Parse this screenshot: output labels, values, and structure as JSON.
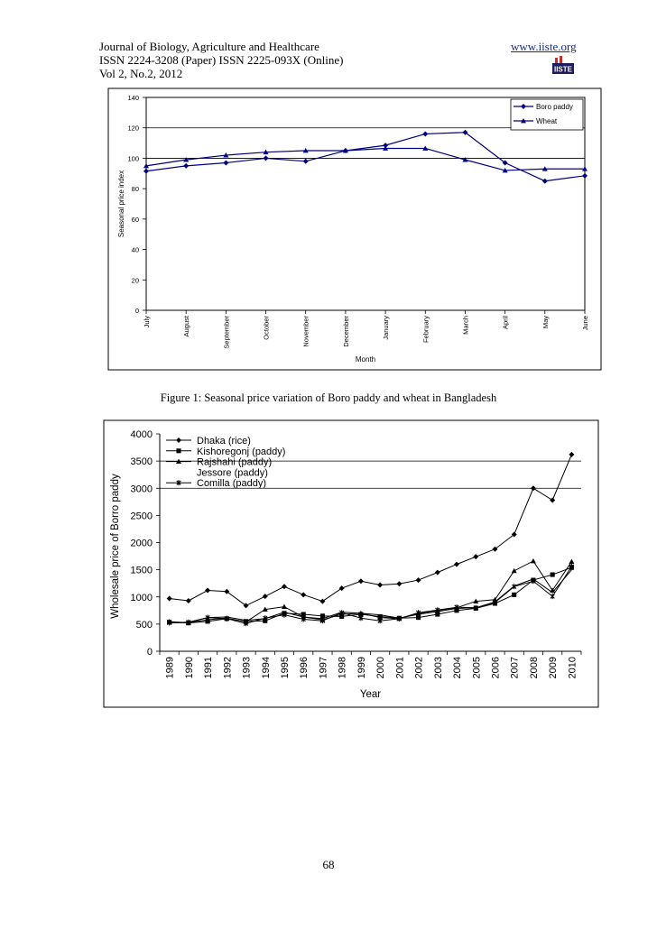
{
  "header": {
    "journal": "Journal of Biology, Agriculture and Healthcare",
    "issn": "ISSN 2224-3208 (Paper) ISSN 2225-093X (Online)",
    "volume": "Vol 2, No.2, 2012",
    "website": "www.iiste.org",
    "logo_text": "IISTE"
  },
  "figure1_caption": "Figure 1: Seasonal price variation of Boro paddy and wheat in Bangladesh",
  "page_number": "68",
  "chart_data": [
    {
      "type": "line",
      "title": "",
      "xlabel": "Month",
      "ylabel": "Seasonal price index",
      "categories": [
        "July",
        "August",
        "September",
        "October",
        "November",
        "December",
        "January",
        "February",
        "March",
        "April",
        "May",
        "June"
      ],
      "ylim": [
        0,
        140
      ],
      "yticks": [
        0,
        20,
        40,
        60,
        80,
        100,
        120,
        140
      ],
      "grid": "horizontal gridlines at 100 and 120",
      "legend": "top-right",
      "series": [
        {
          "name": "Boro paddy",
          "marker": "diamond",
          "values": [
            91.5,
            95,
            97,
            100,
            98,
            105,
            108.5,
            116,
            117,
            97,
            85,
            88.5
          ]
        },
        {
          "name": "Wheat",
          "marker": "triangle",
          "values": [
            95,
            99,
            102,
            104,
            105,
            105,
            106.5,
            106.5,
            99,
            92,
            93,
            93
          ]
        }
      ],
      "colors": {
        "line": "#000080",
        "frame": "#000000"
      }
    },
    {
      "type": "line",
      "title": "",
      "xlabel": "Year",
      "ylabel": "Wholesale price of Borro paddy",
      "categories": [
        "1989",
        "1990",
        "1991",
        "1992",
        "1993",
        "1994",
        "1995",
        "1996",
        "1997",
        "1998",
        "1999",
        "2000",
        "2001",
        "2002",
        "2003",
        "2004",
        "2005",
        "2006",
        "2007",
        "2008",
        "2009",
        "2010"
      ],
      "ylim": [
        0,
        4000
      ],
      "yticks": [
        0,
        500,
        1000,
        1500,
        2000,
        2500,
        3000,
        3500,
        4000
      ],
      "grid": "horizontal gridlines at 3000 and 3500",
      "legend": "top-left",
      "series": [
        {
          "name": "Dhaka  (rice)",
          "marker": "diamond",
          "values": [
            970,
            930,
            1120,
            1100,
            840,
            1010,
            1190,
            1040,
            920,
            1160,
            1290,
            1220,
            1240,
            1310,
            1450,
            1600,
            1740,
            1880,
            2150,
            3000,
            2780,
            3620
          ]
        },
        {
          "name": "Kishoregonj (paddy)",
          "marker": "square",
          "values": [
            535,
            520,
            550,
            600,
            550,
            560,
            700,
            680,
            650,
            640,
            680,
            640,
            610,
            620,
            680,
            750,
            790,
            880,
            1040,
            1310,
            1410,
            1540
          ]
        },
        {
          "name": "Rajshahi (paddy)",
          "marker": "triangle",
          "values": [
            545,
            525,
            580,
            610,
            540,
            770,
            820,
            630,
            580,
            680,
            700,
            620,
            600,
            700,
            750,
            800,
            920,
            950,
            1480,
            1660,
            1120,
            1650
          ]
        },
        {
          "name": "Jessore  (paddy)",
          "marker": "none",
          "values": [
            520,
            530,
            620,
            630,
            570,
            600,
            720,
            630,
            600,
            720,
            700,
            670,
            610,
            680,
            730,
            790,
            800,
            910,
            1200,
            1330,
            1080,
            1500
          ]
        },
        {
          "name": "Comilla (paddy)",
          "marker": "star",
          "values": [
            525,
            535,
            620,
            600,
            510,
            610,
            670,
            590,
            560,
            710,
            610,
            560,
            600,
            710,
            760,
            810,
            800,
            900,
            1190,
            1290,
            1010,
            1560
          ]
        }
      ],
      "colors": {
        "line": "#000000",
        "frame": "#000000"
      }
    }
  ]
}
